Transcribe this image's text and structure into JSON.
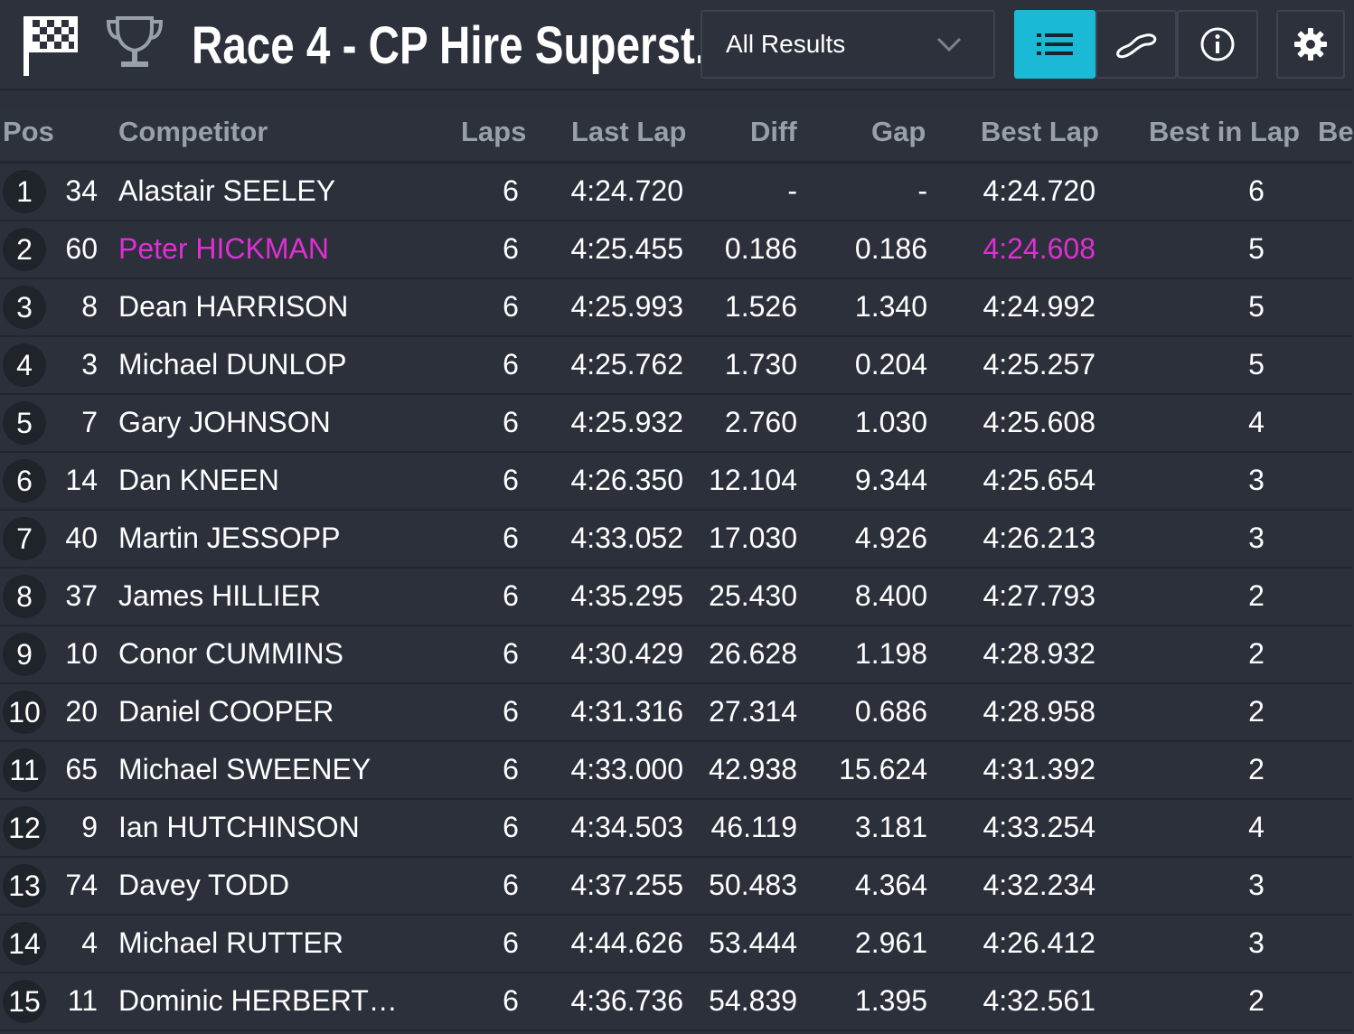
{
  "header": {
    "title": "Race 4 - CP Hire Superst...",
    "results_select": "All Results",
    "accent_color": "#1ab9d5",
    "highlight_color": "#e02fd3"
  },
  "columns": {
    "pos": "Pos",
    "competitor": "Competitor",
    "laps": "Laps",
    "last_lap": "Last Lap",
    "diff": "Diff",
    "gap": "Gap",
    "best_lap": "Best Lap",
    "best_in_lap": "Best in Lap",
    "extra": "Be"
  },
  "rows": [
    {
      "pos": "1",
      "num": "34",
      "name": "Alastair SEELEY",
      "laps": "6",
      "last_lap": "4:24.720",
      "diff": "-",
      "gap": "-",
      "best_lap": "4:24.720",
      "best_in_lap": "6"
    },
    {
      "pos": "2",
      "num": "60",
      "name": "Peter HICKMAN",
      "laps": "6",
      "last_lap": "4:25.455",
      "diff": "0.186",
      "gap": "0.186",
      "best_lap": "4:24.608",
      "best_in_lap": "5",
      "highlight": true
    },
    {
      "pos": "3",
      "num": "8",
      "name": "Dean HARRISON",
      "laps": "6",
      "last_lap": "4:25.993",
      "diff": "1.526",
      "gap": "1.340",
      "best_lap": "4:24.992",
      "best_in_lap": "5"
    },
    {
      "pos": "4",
      "num": "3",
      "name": "Michael DUNLOP",
      "laps": "6",
      "last_lap": "4:25.762",
      "diff": "1.730",
      "gap": "0.204",
      "best_lap": "4:25.257",
      "best_in_lap": "5"
    },
    {
      "pos": "5",
      "num": "7",
      "name": "Gary JOHNSON",
      "laps": "6",
      "last_lap": "4:25.932",
      "diff": "2.760",
      "gap": "1.030",
      "best_lap": "4:25.608",
      "best_in_lap": "4"
    },
    {
      "pos": "6",
      "num": "14",
      "name": "Dan KNEEN",
      "laps": "6",
      "last_lap": "4:26.350",
      "diff": "12.104",
      "gap": "9.344",
      "best_lap": "4:25.654",
      "best_in_lap": "3"
    },
    {
      "pos": "7",
      "num": "40",
      "name": "Martin JESSOPP",
      "laps": "6",
      "last_lap": "4:33.052",
      "diff": "17.030",
      "gap": "4.926",
      "best_lap": "4:26.213",
      "best_in_lap": "3"
    },
    {
      "pos": "8",
      "num": "37",
      "name": "James HILLIER",
      "laps": "6",
      "last_lap": "4:35.295",
      "diff": "25.430",
      "gap": "8.400",
      "best_lap": "4:27.793",
      "best_in_lap": "2"
    },
    {
      "pos": "9",
      "num": "10",
      "name": "Conor CUMMINS",
      "laps": "6",
      "last_lap": "4:30.429",
      "diff": "26.628",
      "gap": "1.198",
      "best_lap": "4:28.932",
      "best_in_lap": "2"
    },
    {
      "pos": "10",
      "num": "20",
      "name": "Daniel COOPER",
      "laps": "6",
      "last_lap": "4:31.316",
      "diff": "27.314",
      "gap": "0.686",
      "best_lap": "4:28.958",
      "best_in_lap": "2"
    },
    {
      "pos": "11",
      "num": "65",
      "name": "Michael SWEENEY",
      "laps": "6",
      "last_lap": "4:33.000",
      "diff": "42.938",
      "gap": "15.624",
      "best_lap": "4:31.392",
      "best_in_lap": "2"
    },
    {
      "pos": "12",
      "num": "9",
      "name": "Ian HUTCHINSON",
      "laps": "6",
      "last_lap": "4:34.503",
      "diff": "46.119",
      "gap": "3.181",
      "best_lap": "4:33.254",
      "best_in_lap": "4"
    },
    {
      "pos": "13",
      "num": "74",
      "name": "Davey TODD",
      "laps": "6",
      "last_lap": "4:37.255",
      "diff": "50.483",
      "gap": "4.364",
      "best_lap": "4:32.234",
      "best_in_lap": "3"
    },
    {
      "pos": "14",
      "num": "4",
      "name": "Michael RUTTER",
      "laps": "6",
      "last_lap": "4:44.626",
      "diff": "53.444",
      "gap": "2.961",
      "best_lap": "4:26.412",
      "best_in_lap": "3"
    },
    {
      "pos": "15",
      "num": "11",
      "name": "Dominic HERBERT…",
      "laps": "6",
      "last_lap": "4:36.736",
      "diff": "54.839",
      "gap": "1.395",
      "best_lap": "4:32.561",
      "best_in_lap": "2"
    }
  ]
}
